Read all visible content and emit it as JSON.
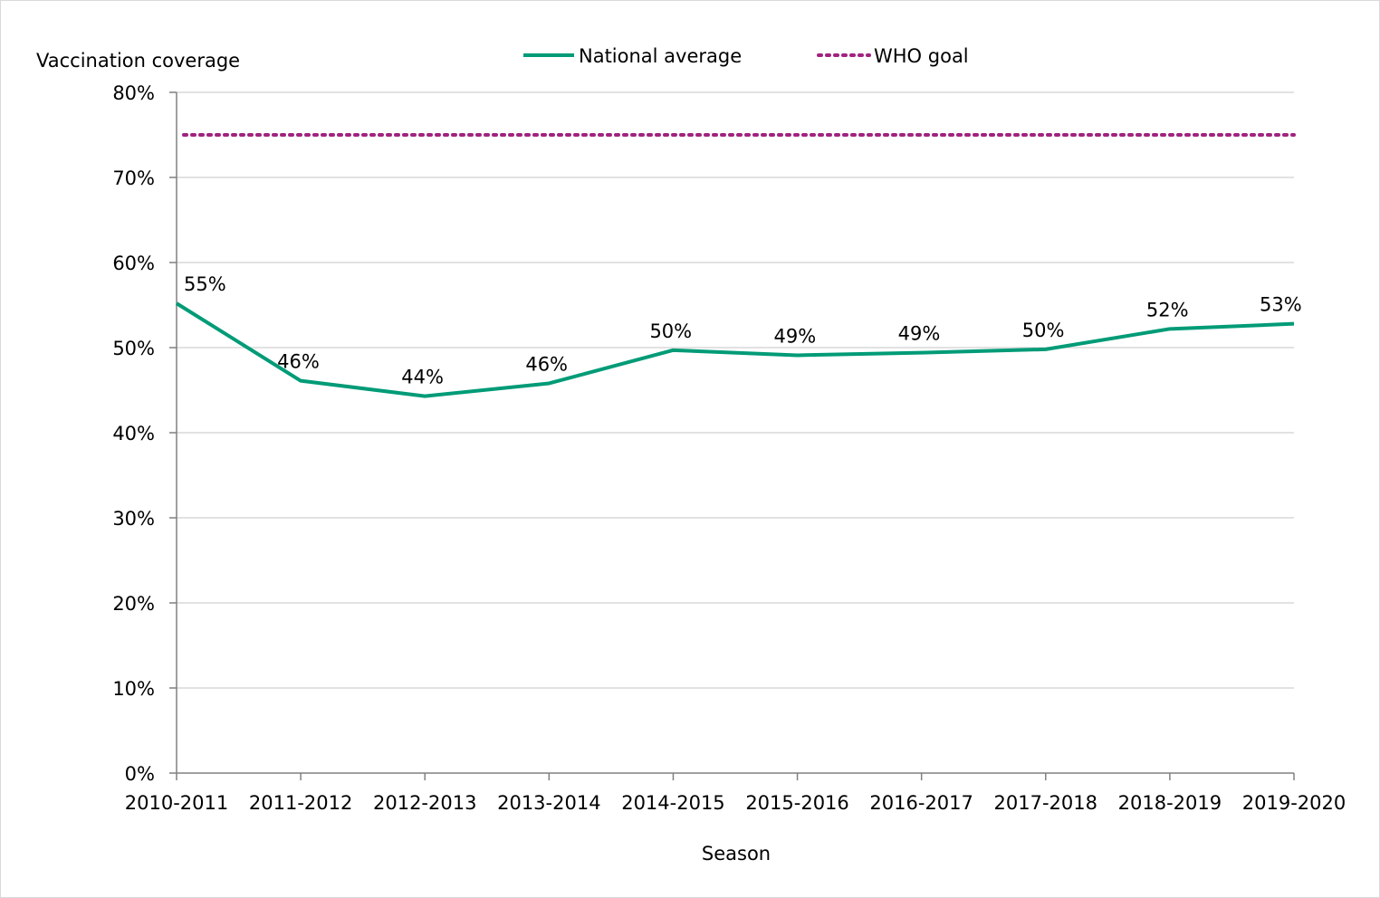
{
  "chart_data": {
    "type": "line",
    "title": "",
    "ylabel": "Vaccination coverage",
    "xlabel": "Season",
    "ylim": [
      0,
      80
    ],
    "yticks": [
      0,
      10,
      20,
      30,
      40,
      50,
      60,
      70,
      80
    ],
    "ytick_labels": [
      "0%",
      "10%",
      "20%",
      "30%",
      "40%",
      "50%",
      "60%",
      "70%",
      "80%"
    ],
    "categories": [
      "2010-2011",
      "2011-2012",
      "2012-2013",
      "2013-2014",
      "2014-2015",
      "2015-2016",
      "2016-2017",
      "2017-2018",
      "2018-2019",
      "2019-2020"
    ],
    "series": [
      {
        "name": "National average",
        "color": "#009B77",
        "style": "solid",
        "values": [
          55.2,
          46.1,
          44.3,
          45.8,
          49.7,
          49.1,
          49.4,
          49.8,
          52.2,
          52.8
        ],
        "labels": [
          "55%",
          "46%",
          "44%",
          "46%",
          "50%",
          "49%",
          "49%",
          "50%",
          "52%",
          "53%"
        ]
      },
      {
        "name": "WHO goal",
        "color": "#A0237F",
        "style": "dotted",
        "value": 75
      }
    ],
    "gridlines": true,
    "legend_position": "top-center"
  }
}
